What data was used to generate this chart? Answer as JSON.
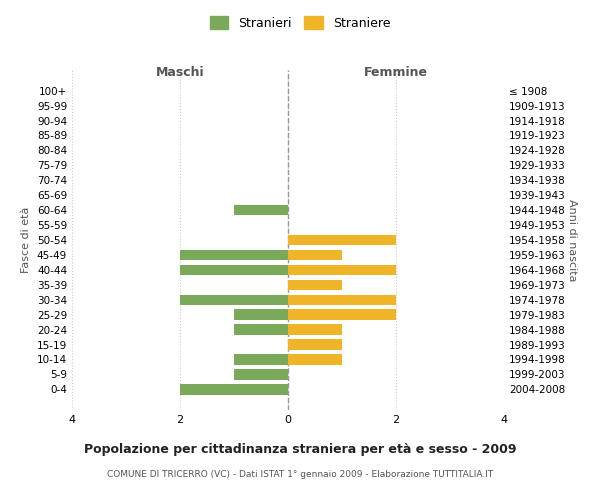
{
  "age_groups": [
    "100+",
    "95-99",
    "90-94",
    "85-89",
    "80-84",
    "75-79",
    "70-74",
    "65-69",
    "60-64",
    "55-59",
    "50-54",
    "45-49",
    "40-44",
    "35-39",
    "30-34",
    "25-29",
    "20-24",
    "15-19",
    "10-14",
    "5-9",
    "0-4"
  ],
  "birth_years": [
    "≤ 1908",
    "1909-1913",
    "1914-1918",
    "1919-1923",
    "1924-1928",
    "1929-1933",
    "1934-1938",
    "1939-1943",
    "1944-1948",
    "1949-1953",
    "1954-1958",
    "1959-1963",
    "1964-1968",
    "1969-1973",
    "1974-1978",
    "1979-1983",
    "1984-1988",
    "1989-1993",
    "1994-1998",
    "1999-2003",
    "2004-2008"
  ],
  "maschi": [
    0,
    0,
    0,
    0,
    0,
    0,
    0,
    0,
    1,
    0,
    0,
    2,
    2,
    0,
    2,
    1,
    1,
    0,
    1,
    1,
    2
  ],
  "femmine": [
    0,
    0,
    0,
    0,
    0,
    0,
    0,
    0,
    0,
    0,
    2,
    1,
    2,
    1,
    2,
    2,
    1,
    1,
    1,
    0,
    0
  ],
  "male_color": "#7aaa59",
  "female_color": "#f0b429",
  "background_color": "#ffffff",
  "grid_color": "#cccccc",
  "title": "Popolazione per cittadinanza straniera per età e sesso - 2009",
  "subtitle": "COMUNE DI TRICERRO (VC) - Dati ISTAT 1° gennaio 2009 - Elaborazione TUTTITALIA.IT",
  "ylabel_left": "Fasce di età",
  "ylabel_right": "Anni di nascita",
  "xlabel_left": "Maschi",
  "xlabel_right": "Femmine",
  "legend_male": "Stranieri",
  "legend_female": "Straniere",
  "xlim": 4
}
